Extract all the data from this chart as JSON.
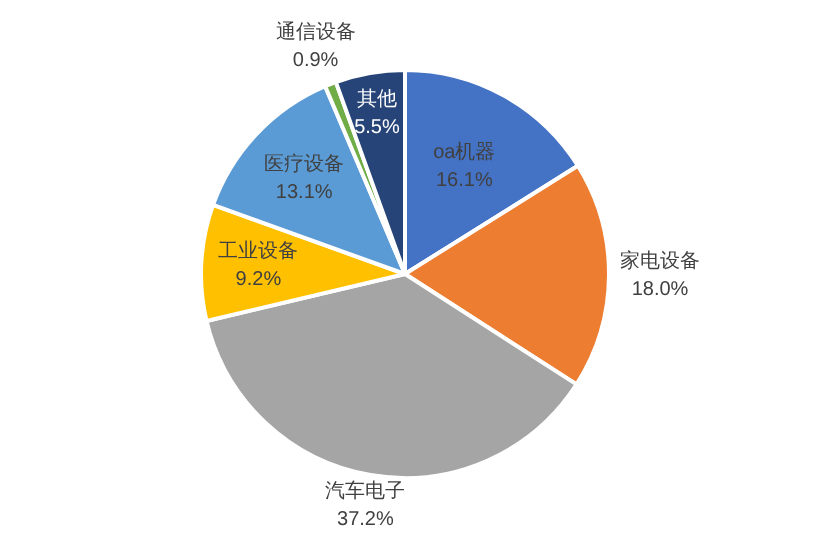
{
  "chart_data": {
    "type": "pie",
    "categories": [
      "oa机器",
      "家电设备",
      "汽车电子",
      "工业设备",
      "医疗设备",
      "通信设备",
      "其他"
    ],
    "values": [
      16.1,
      18.0,
      37.2,
      9.2,
      13.1,
      0.9,
      5.5
    ],
    "value_labels": [
      "16.1%",
      "18.0%",
      "37.2%",
      "9.2%",
      "13.1%",
      "0.9%",
      "5.5%"
    ],
    "colors": [
      "#4472c4",
      "#ed7d31",
      "#a5a5a5",
      "#ffc000",
      "#5b9bd5",
      "#70ad47",
      "#264478"
    ],
    "legend": false
  }
}
